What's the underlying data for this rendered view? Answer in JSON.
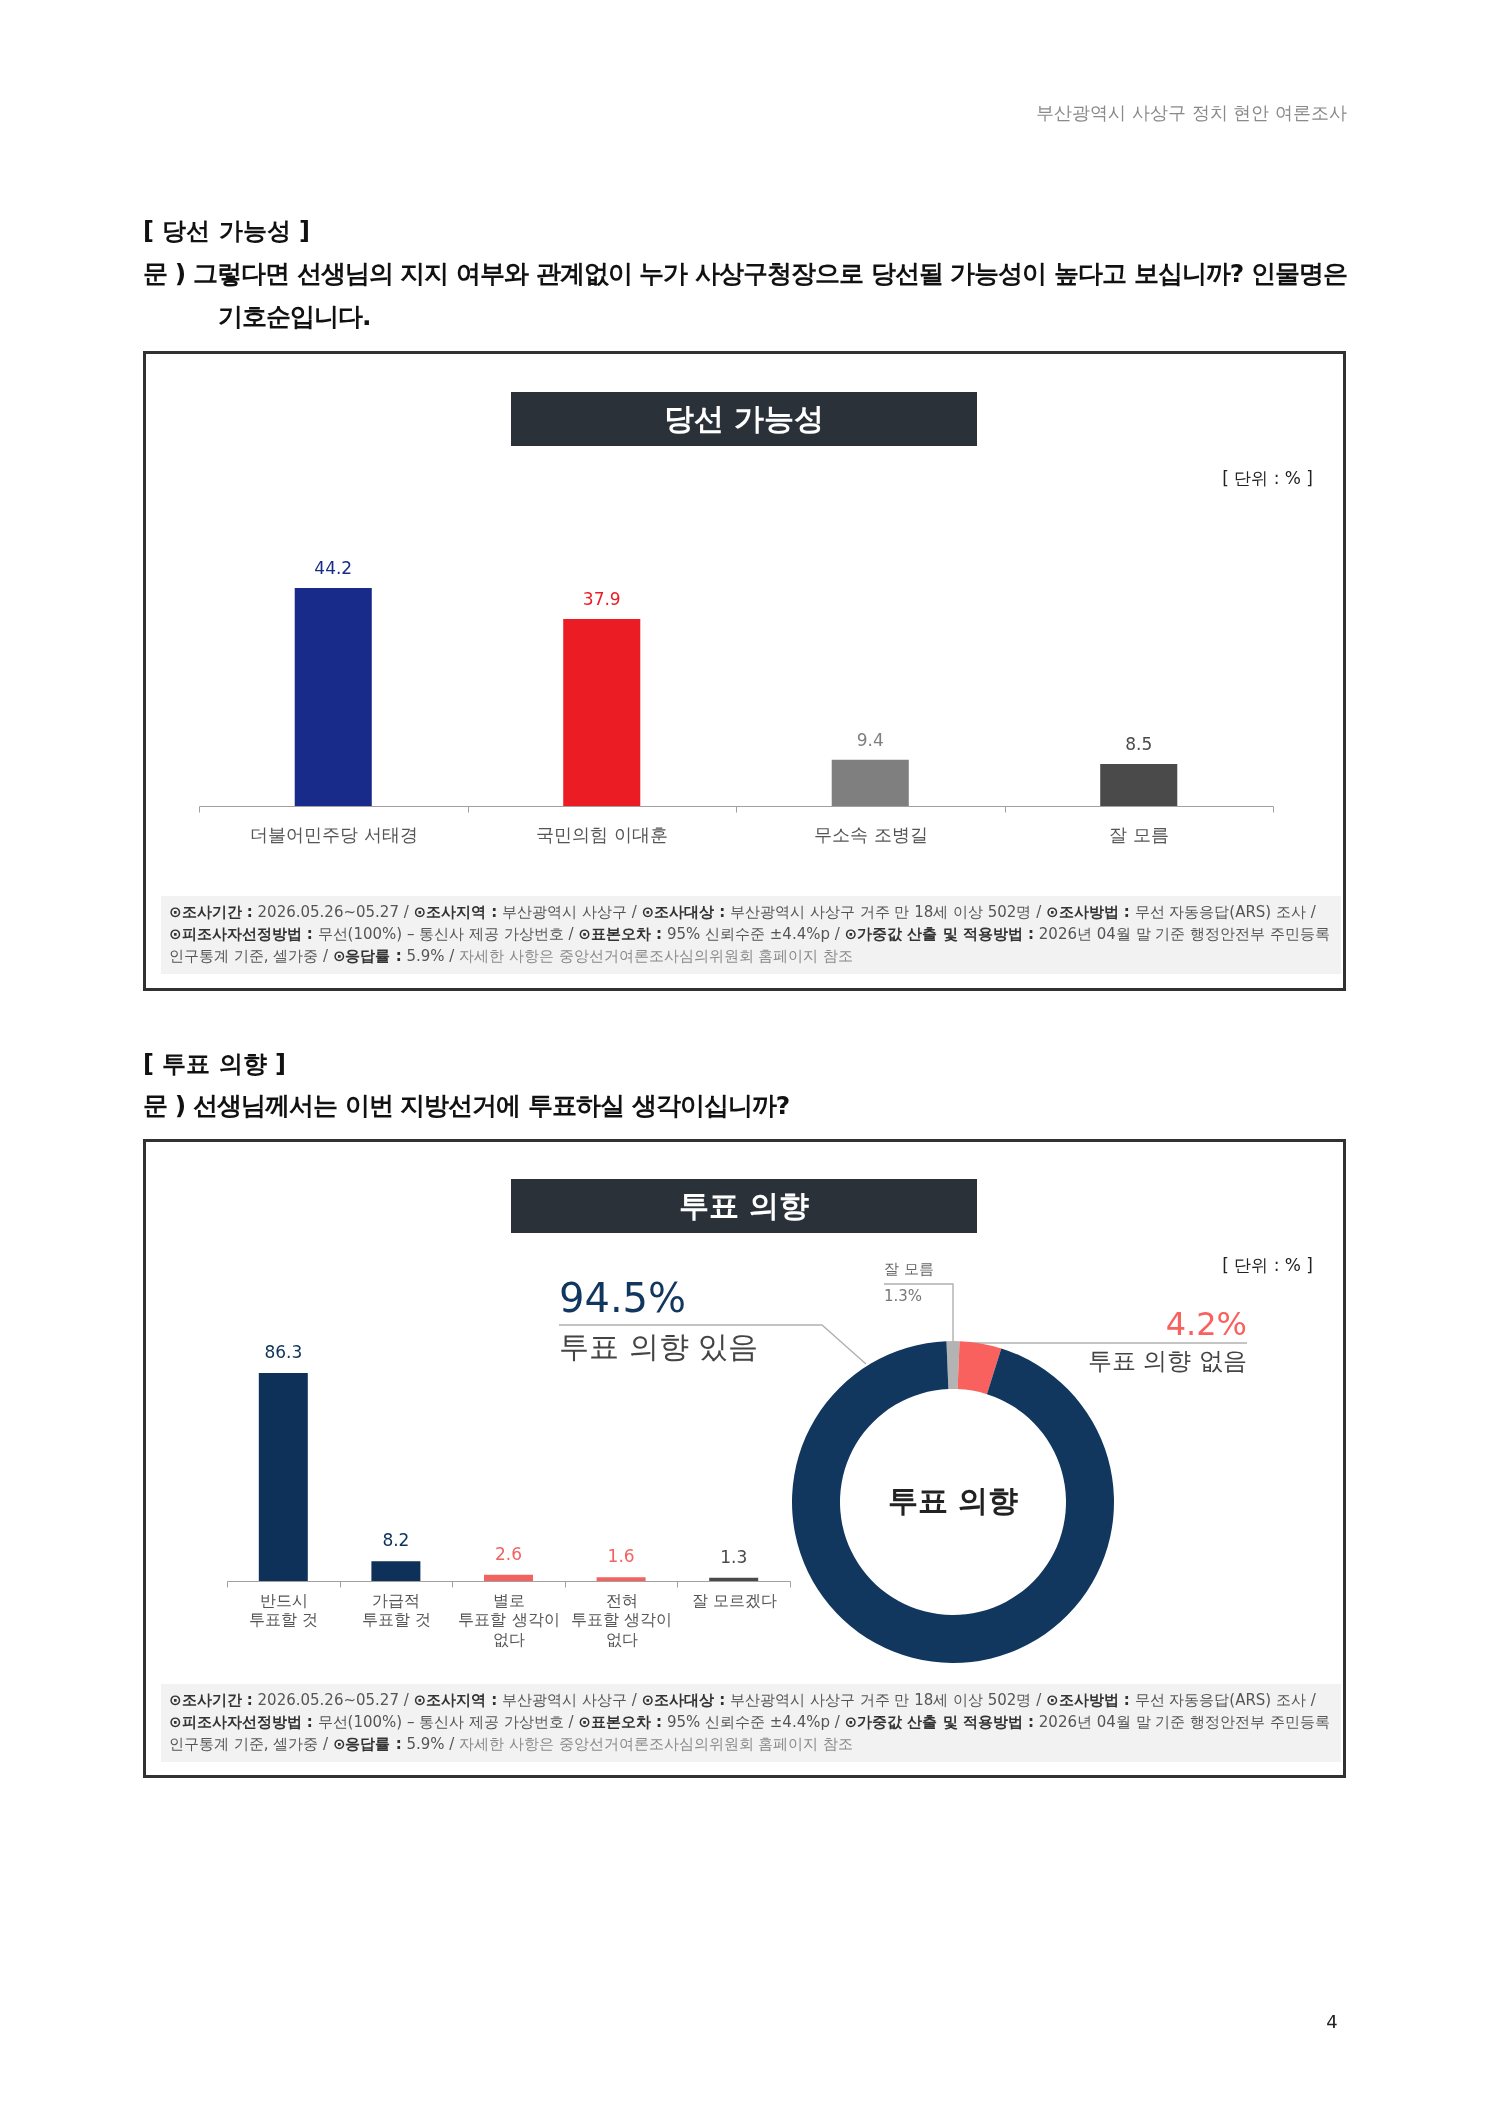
{
  "chart_data": [
    {
      "type": "bar",
      "title": "당선 가능성",
      "subtitle": "문 ) 그렇다면 선생님의 지지 여부와 관계없이 누가 사상구청장으로 당선될 가능성이 높다고 보십니까? 인물명은 기호순입니다.",
      "categories": [
        "더불어민주당 서태경",
        "국민의힘 이대훈",
        "무소속 조병길",
        "잘 모름"
      ],
      "values": [
        44.2,
        37.9,
        9.4,
        8.5
      ],
      "colors": [
        "#182a8a",
        "#ec1c24",
        "#7f7f7f",
        "#4a4a4a"
      ],
      "data_labels": true,
      "annotations": [
        "부산광역시 사상구 정치 현안 여론조사",
        "[ 당선 가능성 ]",
        "[ 단위 : % ]",
        "⊙조사기간 : 2026.05.26~05.27 / ⊙조사지역 : 부산광역시 사상구 / ⊙조사대상 : 부산광역시 사상구 거주 만 18세 이상 502명 / ⊙조사방법 : 무선 자동응답(ARS) 조사 / ⊙피조사자선정방법 : 무선(100%) – 통신사 제공 가상번호 / ⊙표본오차 : 95% 신뢰수준 ±4.4%p / ⊙가중값 산출 및 적용방법 : 2026년 04월 말 기준 행정안전부 주민등록 인구통계 기준, 셀가중 / ⊙응답률 : 5.9% / 자세한 사항은 중앙선거여론조사심의위원회 홈페이지 참조"
      ]
    },
    {
      "type": "bar",
      "title": "투표 의향",
      "subtitle": "문 ) 선생님께서는 이번 지방선거에 투표하실 생각이십니까?",
      "categories": [
        "반드시\n투표할 것",
        "가급적\n투표할 것",
        "별로\n투표할 생각이\n없다",
        "전혀\n투표할 생각이\n없다",
        "잘 모르겠다"
      ],
      "values": [
        86.3,
        8.2,
        2.6,
        1.6,
        1.3
      ],
      "colors": [
        "#0d3158",
        "#0d3158",
        "#f26360",
        "#f26360",
        "#4a4a4a"
      ],
      "data_labels": true,
      "annotations": [
        "[ 투표 의향 ]",
        "[ 단위 : % ]",
        "⊙조사기간 : 2026.05.26~05.27 / ⊙조사지역 : 부산광역시 사상구 / ⊙조사대상 : 부산광역시 사상구 거주 만 18세 이상 502명 / ⊙조사방법 : 무선 자동응답(ARS) 조사 / ⊙피조사자선정방법 : 무선(100%) – 통신사 제공 가상번호 / ⊙표본오차 : 95% 신뢰수준 ±4.4%p / ⊙가중값 산출 및 적용방법 : 2026년 04월 말 기준 행정안전부 주민등록 인구통계 기준, 셀가중 / ⊙응답률 : 5.9% / 자세한 사항은 중앙선거여론조사심의위원회 홈페이지 참조",
        "4"
      ]
    },
    {
      "type": "donut",
      "title": "투표 의향",
      "categories": [
        "잘 모름",
        "투표 의향 없음",
        "투표 의향 있음"
      ],
      "values": [
        1.3,
        4.2,
        94.5
      ],
      "colors": [
        "#b3b3b3",
        "#f8615e",
        "#11375f"
      ],
      "value_labels": [
        "1.3%",
        "4.2%",
        "94.5%"
      ]
    }
  ]
}
